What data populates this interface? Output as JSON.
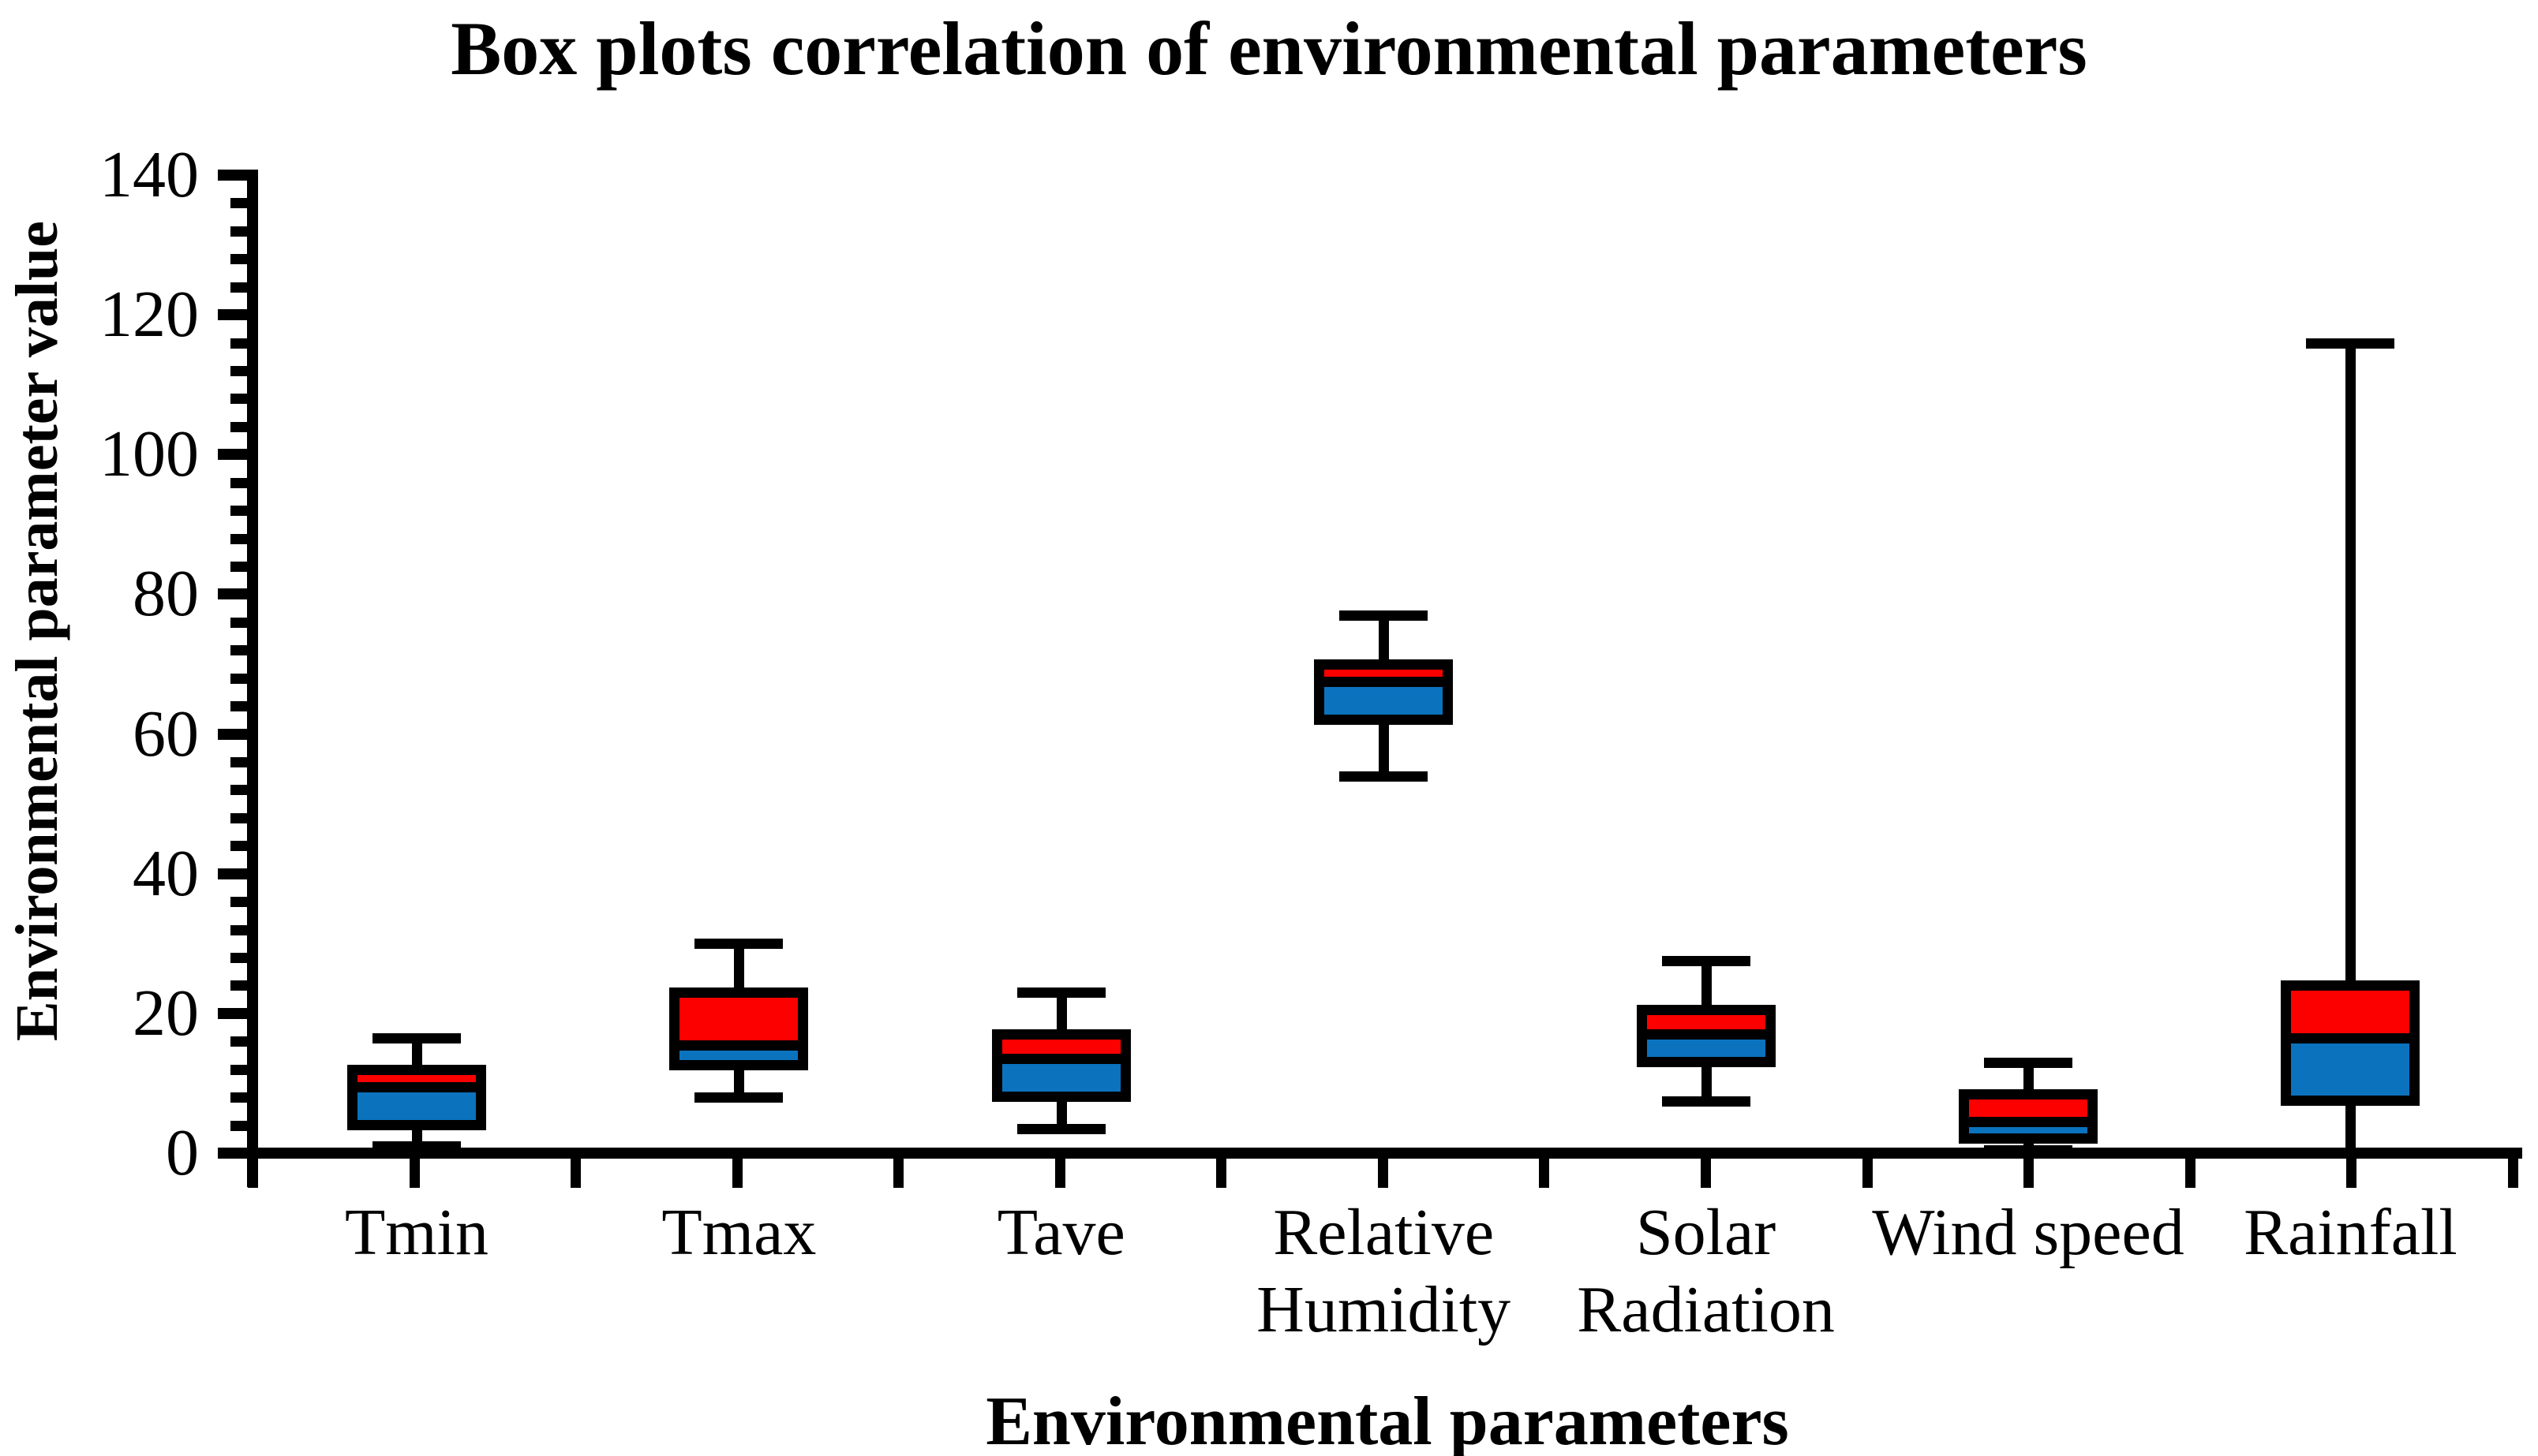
{
  "title": "Box plots correlation of environmental parameters",
  "y_axis": {
    "title": "Environmental parameter value",
    "tick_labels": [
      140,
      120,
      100,
      80,
      60,
      40,
      20,
      0
    ],
    "min": 0,
    "max": 140,
    "major_unit": 20,
    "minor_unit": 4
  },
  "x_axis": {
    "title": "Environmental parameters"
  },
  "colors": {
    "upper_box": "#fc0000",
    "lower_box": "#0b72be",
    "line": "#000000",
    "background": "#ffffff"
  },
  "chart_data": {
    "type": "boxplot",
    "title": "Box plots correlation of environmental parameters",
    "xlabel": "Environmental parameters",
    "ylabel": "Environmental parameter value",
    "ylim": [
      0,
      140
    ],
    "grid": false,
    "legend": null,
    "categories": [
      "Tmin",
      "Tmax",
      "Tave",
      "Relative Humidity",
      "Solar Radiation",
      "Wind speed",
      "Rainfall"
    ],
    "category_label_lines": [
      [
        "Tmin"
      ],
      [
        "Tmax"
      ],
      [
        "Tave"
      ],
      [
        "Relative",
        "Humidity"
      ],
      [
        "Solar",
        "Radiation"
      ],
      [
        "Wind speed"
      ],
      [
        "Rainfall"
      ]
    ],
    "box_style": {
      "upper_segment": "median to Q3, red fill",
      "lower_segment": "Q1 to median, blue fill",
      "whiskers": "black lines with end caps"
    },
    "values": [
      {
        "category": "Tmin",
        "whisker_low": 1,
        "q1": 4,
        "median": 9.5,
        "q3": 12,
        "whisker_high": 16.5
      },
      {
        "category": "Tmax",
        "whisker_low": 8,
        "q1": 12.5,
        "median": 15.5,
        "q3": 23,
        "whisker_high": 30
      },
      {
        "category": "Tave",
        "whisker_low": 3.5,
        "q1": 8,
        "median": 13.5,
        "q3": 17,
        "whisker_high": 23
      },
      {
        "category": "Relative Humidity",
        "whisker_low": 54,
        "q1": 62,
        "median": 67.5,
        "q3": 70,
        "whisker_high": 77
      },
      {
        "category": "Solar Radiation",
        "whisker_low": 7.5,
        "q1": 13,
        "median": 17,
        "q3": 20.5,
        "whisker_high": 27.5
      },
      {
        "category": "Wind speed",
        "whisker_low": 0.5,
        "q1": 2,
        "median": 4.5,
        "q3": 8.5,
        "whisker_high": 13
      },
      {
        "category": "Rainfall",
        "whisker_low": 0,
        "q1": 7.5,
        "median": 16.5,
        "q3": 24,
        "whisker_high": 116
      }
    ]
  }
}
